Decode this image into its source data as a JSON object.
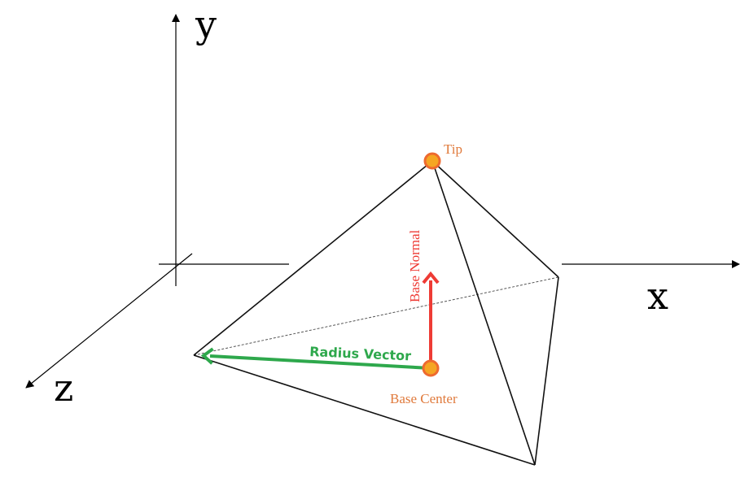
{
  "axes": {
    "x_label": "x",
    "y_label": "y",
    "z_label": "z"
  },
  "points": {
    "tip_label": "Tip",
    "base_center_label": "Base Center"
  },
  "vectors": {
    "base_normal_label": "Base Normal",
    "radius_vector_label": "Radius Vector"
  },
  "colors": {
    "axis": "#000000",
    "edge": "#111111",
    "hidden_edge": "#555555",
    "point_fill": "#f5a623",
    "point_stroke": "#ee6a2f",
    "point_label": "#e07a3c",
    "normal": "#ee3b35",
    "radius": "#2ea84c"
  }
}
